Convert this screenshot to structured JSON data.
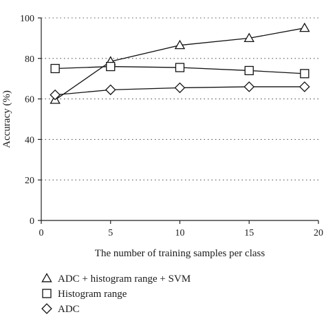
{
  "chart_data": {
    "type": "line",
    "title": "",
    "xlabel": "The number of training samples per class",
    "ylabel": "Accuracy (%)",
    "xlim": [
      0,
      20
    ],
    "ylim": [
      0,
      100
    ],
    "x_ticks": [
      0,
      5,
      10,
      15,
      20
    ],
    "y_ticks": [
      0,
      20,
      40,
      60,
      80,
      100
    ],
    "grid": "horizontal dotted",
    "legend_position": "below",
    "x": [
      1,
      5,
      10,
      15,
      19
    ],
    "series": [
      {
        "name": "ADC + histogram range + SVM",
        "marker": "triangle",
        "values": [
          59.5,
          78.5,
          86.5,
          90.0,
          95.0
        ]
      },
      {
        "name": "Histogram range",
        "marker": "square",
        "values": [
          75.0,
          76.0,
          75.5,
          74.0,
          72.5
        ]
      },
      {
        "name": "ADC",
        "marker": "diamond",
        "values": [
          62.0,
          64.5,
          65.5,
          66.0,
          66.0
        ]
      }
    ]
  }
}
